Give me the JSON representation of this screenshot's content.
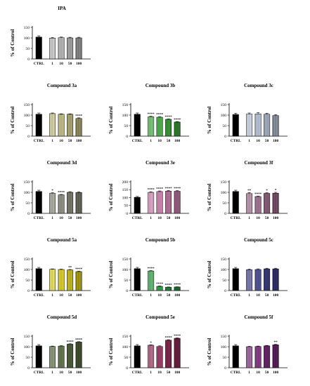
{
  "y_label": "% of Control",
  "chart_data": [
    {
      "type": "bar",
      "title": "IPA",
      "categories": [
        "CTRL",
        "1",
        "10",
        "50",
        "100"
      ],
      "values": [
        104,
        99,
        101,
        100,
        100
      ],
      "errors": [
        6,
        3,
        3,
        3,
        3
      ],
      "sig": [
        "",
        "",
        "",
        "",
        ""
      ],
      "yticks": [
        0,
        50,
        100,
        150
      ],
      "ylim": [
        0,
        150
      ],
      "color": "#b8b8b8"
    },
    {
      "type": "bar",
      "title": "Compound 3a",
      "categories": [
        "CTRL",
        "1",
        "10",
        "50",
        "100"
      ],
      "values": [
        104,
        107,
        104,
        104,
        84
      ],
      "errors": [
        6,
        3,
        2,
        2,
        3
      ],
      "sig": [
        "",
        "",
        "",
        "",
        "****"
      ],
      "yticks": [
        0,
        50,
        100,
        150
      ],
      "ylim": [
        0,
        150
      ],
      "color": "#c4bf80"
    },
    {
      "type": "bar",
      "title": "Compound 3b",
      "categories": [
        "CTRL",
        "1",
        "10",
        "50",
        "100"
      ],
      "values": [
        104,
        92,
        90,
        80,
        67
      ],
      "errors": [
        6,
        3,
        3,
        2,
        2
      ],
      "sig": [
        "",
        "****",
        "****",
        "****",
        "****"
      ],
      "yticks": [
        0,
        50,
        100,
        150
      ],
      "ylim": [
        0,
        150
      ],
      "color": "#3dad3a"
    },
    {
      "type": "bar",
      "title": "Compound 3c",
      "categories": [
        "CTRL",
        "1",
        "10",
        "50",
        "100"
      ],
      "values": [
        103,
        105,
        106,
        104,
        98
      ],
      "errors": [
        6,
        5,
        6,
        5,
        4
      ],
      "sig": [
        "",
        "",
        "",
        "",
        ""
      ],
      "yticks": [
        0,
        50,
        100,
        150
      ],
      "ylim": [
        0,
        150
      ],
      "color": "#b9c6da"
    },
    {
      "type": "bar",
      "title": "Compound 3d",
      "categories": [
        "CTRL",
        "1",
        "10",
        "50",
        "100"
      ],
      "values": [
        104,
        95,
        88,
        100,
        99
      ],
      "errors": [
        6,
        3,
        2,
        3,
        3
      ],
      "sig": [
        "",
        "*",
        "****",
        "",
        ""
      ],
      "yticks": [
        0,
        50,
        100,
        150
      ],
      "ylim": [
        0,
        150
      ],
      "color": "#8a8a7a"
    },
    {
      "type": "bar",
      "title": "Compound 3e",
      "categories": [
        "CTRL",
        "1",
        "10",
        "50",
        "100"
      ],
      "values": [
        102,
        133,
        138,
        141,
        140
      ],
      "errors": [
        5,
        4,
        4,
        4,
        4
      ],
      "sig": [
        "",
        "****",
        "****",
        "****",
        "****"
      ],
      "yticks": [
        0,
        50,
        100,
        150,
        200
      ],
      "ylim": [
        0,
        200
      ],
      "color": "#d27fb0"
    },
    {
      "type": "bar",
      "title": "Compound 3f",
      "categories": [
        "CTRL",
        "1",
        "10",
        "50",
        "100"
      ],
      "values": [
        104,
        94,
        80,
        95,
        96
      ],
      "errors": [
        6,
        5,
        2,
        3,
        4
      ],
      "sig": [
        "",
        "**",
        "****",
        "*",
        "*"
      ],
      "yticks": [
        0,
        50,
        100,
        150
      ],
      "ylim": [
        0,
        150
      ],
      "color": "#9e6a8a"
    },
    {
      "type": "bar",
      "title": "Compound 5a",
      "categories": [
        "CTRL",
        "1",
        "10",
        "50",
        "100"
      ],
      "values": [
        104,
        101,
        100,
        98,
        90
      ],
      "errors": [
        6,
        2,
        2,
        2,
        2
      ],
      "sig": [
        "",
        "",
        "",
        "**",
        "****"
      ],
      "yticks": [
        0,
        50,
        100,
        150
      ],
      "ylim": [
        0,
        150
      ],
      "color": "#e0d418"
    },
    {
      "type": "bar",
      "title": "Compound 5b",
      "categories": [
        "CTRL",
        "1",
        "10",
        "50",
        "100"
      ],
      "values": [
        104,
        93,
        20,
        16,
        17
      ],
      "errors": [
        6,
        2,
        2,
        1,
        1
      ],
      "sig": [
        "",
        "****",
        "****",
        "****",
        "****"
      ],
      "yticks": [
        0,
        50,
        100,
        150
      ],
      "ylim": [
        0,
        150
      ],
      "color": "#1f9a36"
    },
    {
      "type": "bar",
      "title": "Compound 5c",
      "categories": [
        "CTRL",
        "1",
        "10",
        "50",
        "100"
      ],
      "values": [
        104,
        99,
        100,
        103,
        103
      ],
      "errors": [
        6,
        3,
        3,
        3,
        3
      ],
      "sig": [
        "",
        "",
        "",
        "",
        ""
      ],
      "yticks": [
        0,
        50,
        100,
        150
      ],
      "ylim": [
        0,
        150
      ],
      "color": "#3f3f8e"
    },
    {
      "type": "bar",
      "title": "Compound 5d",
      "categories": [
        "CTRL",
        "1",
        "10",
        "50",
        "100"
      ],
      "values": [
        104,
        101,
        103,
        112,
        122
      ],
      "errors": [
        6,
        2,
        2,
        2,
        2
      ],
      "sig": [
        "",
        "",
        "",
        "****",
        "****"
      ],
      "yticks": [
        0,
        50,
        100,
        150
      ],
      "ylim": [
        0,
        150
      ],
      "color": "#556b3e"
    },
    {
      "type": "bar",
      "title": "Compound 5e",
      "categories": [
        "CTRL",
        "1",
        "10",
        "50",
        "100"
      ],
      "values": [
        104,
        107,
        101,
        131,
        140
      ],
      "errors": [
        6,
        2,
        3,
        2,
        2
      ],
      "sig": [
        "",
        "*",
        "",
        "****",
        "****"
      ],
      "yticks": [
        0,
        50,
        100,
        150
      ],
      "ylim": [
        0,
        150
      ],
      "color": "#952a57"
    },
    {
      "type": "bar",
      "title": "Compound 5f",
      "categories": [
        "CTRL",
        "1",
        "10",
        "50",
        "100"
      ],
      "values": [
        104,
        100,
        101,
        104,
        109
      ],
      "errors": [
        6,
        2,
        2,
        2,
        2
      ],
      "sig": [
        "",
        "",
        "",
        "",
        "**"
      ],
      "yticks": [
        0,
        50,
        100,
        150
      ],
      "ylim": [
        0,
        150
      ],
      "color": "#7a287a"
    }
  ]
}
